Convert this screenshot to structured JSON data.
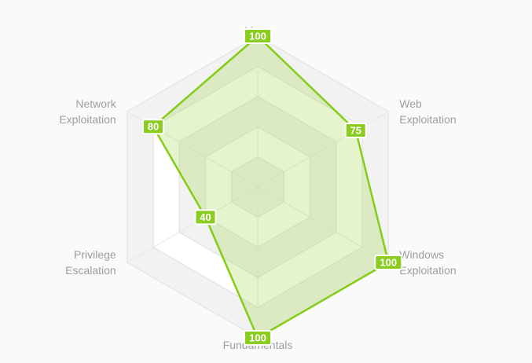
{
  "chart_data": {
    "type": "radar",
    "axes": [
      {
        "label_lines": [
          "Linux"
        ]
      },
      {
        "label_lines": [
          "Web",
          "Exploitation"
        ]
      },
      {
        "label_lines": [
          "Windows",
          "Exploitation"
        ]
      },
      {
        "label_lines": [
          "Fundamentals"
        ]
      },
      {
        "label_lines": [
          "Privilege",
          "Escalation"
        ]
      },
      {
        "label_lines": [
          "Network",
          "Exploitation"
        ]
      }
    ],
    "series": [
      {
        "values": [
          100,
          75,
          100,
          100,
          40,
          80
        ]
      }
    ],
    "value_labels": [
      "100",
      "75",
      "100",
      "100",
      "40",
      "80"
    ],
    "range": [
      0,
      100
    ],
    "grid_levels": 5,
    "legend": "none",
    "colors": {
      "series_line": "#84cc16",
      "series_fill": "#a3d64d",
      "label_badge": "#8bcc21",
      "grid_line": "#e6e6e6",
      "grid_band": "#f2f2f2",
      "axis_label": "#9e9e9e"
    }
  }
}
